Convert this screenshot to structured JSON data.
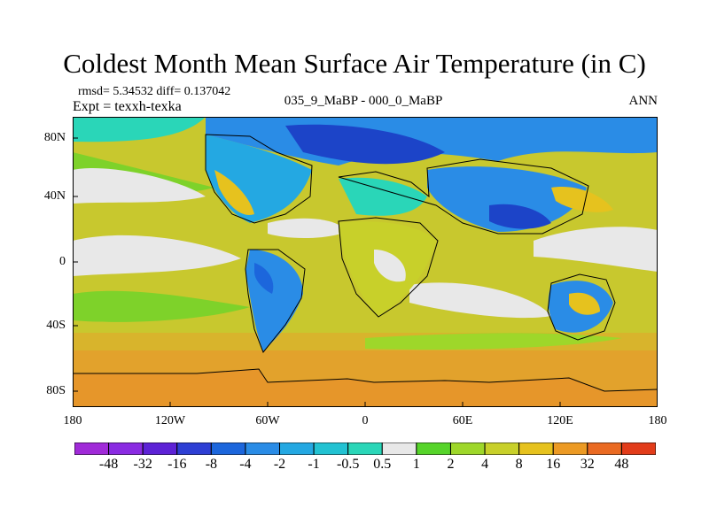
{
  "title": "Coldest Month Mean Surface Air Temperature (in C)",
  "stats": "rmsd= 5.34532 diff= 0.137042",
  "experiment": "Expt = texxh-texka",
  "period_label": "035_9_MaBP - 000_0_MaBP",
  "season": "ANN",
  "axes": {
    "y_ticks": [
      "80N",
      "40N",
      "0",
      "40S",
      "80S"
    ],
    "x_ticks": [
      "180",
      "120W",
      "60W",
      "0",
      "60E",
      "120E",
      "180"
    ]
  },
  "colorbar": {
    "labels": [
      "-48",
      "-32",
      "-16",
      "-8",
      "-4",
      "-2",
      "-1",
      "-0.5",
      "0.5",
      "1",
      "2",
      "4",
      "8",
      "16",
      "32",
      "48"
    ],
    "colors": [
      "#8a2be2",
      "#5d22d6",
      "#2e3fd4",
      "#1c66dc",
      "#2a8ce6",
      "#24a8e2",
      "#22c2d2",
      "#2ad6b8",
      "#e8e8e8",
      "#56d42a",
      "#9ed72a",
      "#c8d02a",
      "#e6c21e",
      "#ec9a24",
      "#ea6a22",
      "#e23c1a"
    ]
  },
  "map_colors": {
    "ocean_warm": "#c8c82e",
    "ocean_orange": "#e2a22c",
    "neutral": "#e8e8e8",
    "cold_light": "#2ad6b8",
    "cold_mid": "#2a8ce6",
    "cold_deep": "#1c44c8",
    "warm_green": "#7ed22a",
    "outline": "#000000"
  }
}
